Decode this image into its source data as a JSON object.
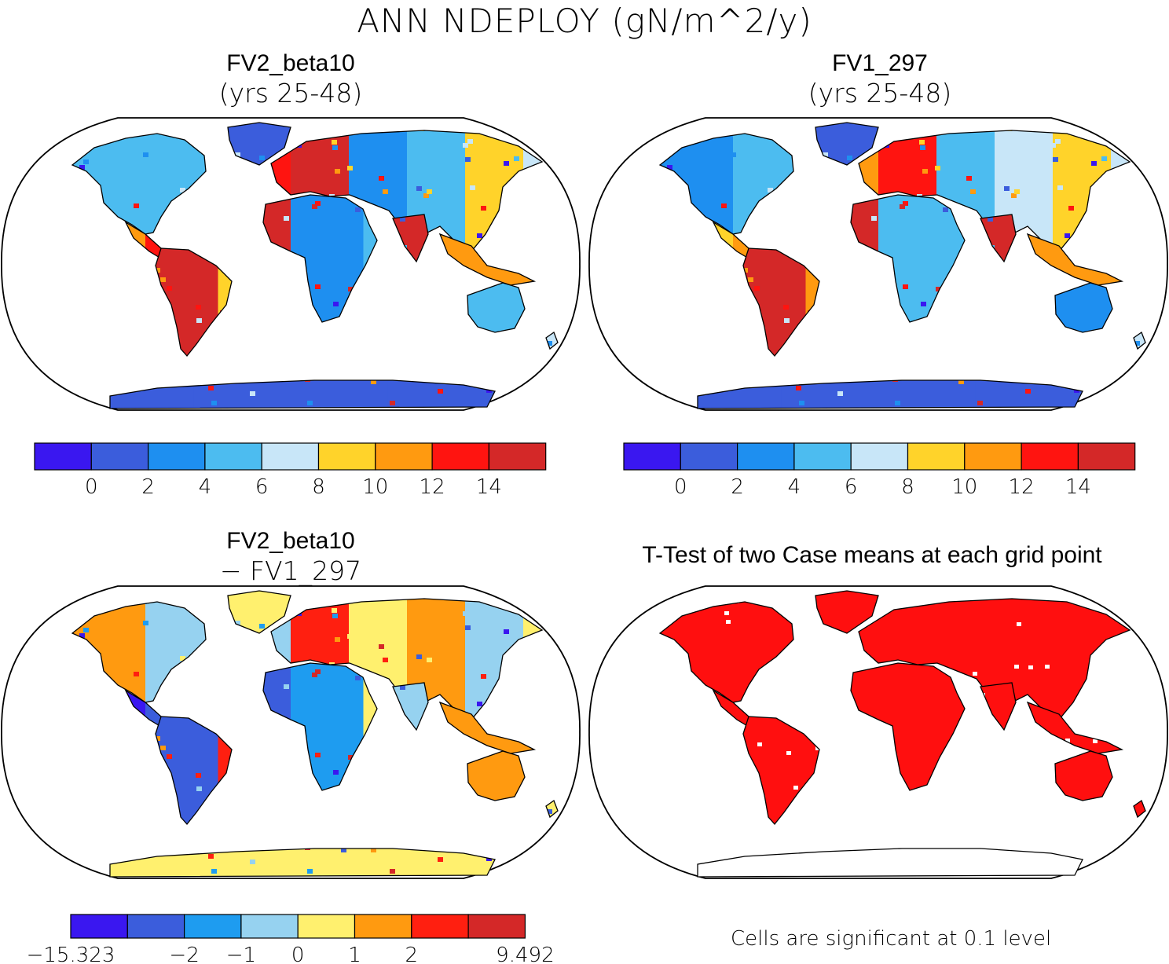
{
  "title": "ANN NDEPLOY (gN/m^2/y)",
  "colors": {
    "abs_scale": [
      "#3a17f0",
      "#3b5ddc",
      "#1e8ff0",
      "#4cbcf0",
      "#c8e6f8",
      "#ffd32a",
      "#ff9a10",
      "#ff1410",
      "#d42828"
    ],
    "diff_scale": [
      "#3a17f0",
      "#3b5ddc",
      "#1e9cf0",
      "#96d2f0",
      "#fff06e",
      "#ff9a10",
      "#ff1f10",
      "#d42828"
    ],
    "signif": "#ff0f0f"
  },
  "panels": [
    {
      "id": "top-left",
      "title": "FV2_beta10",
      "subtitle": "(yrs 25-48)",
      "colorbar": {
        "labels": [
          "0",
          "2",
          "4",
          "6",
          "8",
          "10",
          "12",
          "14"
        ]
      }
    },
    {
      "id": "top-right",
      "title": "FV1_297",
      "subtitle": "(yrs 25-48)",
      "colorbar": {
        "labels": [
          "0",
          "2",
          "4",
          "6",
          "8",
          "10",
          "12",
          "14"
        ]
      }
    },
    {
      "id": "bottom-left",
      "title": "FV2_beta10",
      "subtitle": "− FV1_297",
      "colorbar": {
        "labels": [
          "−15.323",
          "−2",
          "−1",
          "0",
          "1",
          "2",
          "9.492"
        ]
      }
    },
    {
      "id": "bottom-right",
      "title": "T-Test of two Case means at each grid point",
      "footnote": "Cells are significant at 0.1 level"
    }
  ]
}
